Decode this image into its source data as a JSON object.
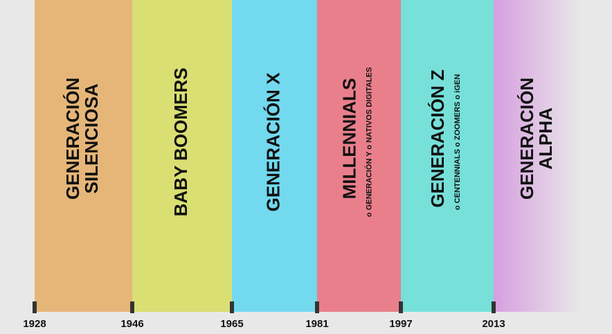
{
  "generations": [
    {
      "lines": [
        "GENERACIÓN",
        "SILENCIOSA"
      ]
    },
    {
      "lines": [
        "BABY BOOMERS"
      ]
    },
    {
      "lines": [
        "GENERACIÓN X"
      ]
    },
    {
      "lines": [
        "MILLENNIALS"
      ],
      "subtitle": "o GENERACIÓN Y  o  NATIVOS DIGITALES"
    },
    {
      "lines": [
        "GENERACIÓN Z"
      ],
      "subtitle": "o CENTENNIALS  o  ZOOMERS  o  iGEN"
    },
    {
      "lines": [
        "GENERACIÓN",
        "ALPHA"
      ]
    }
  ],
  "years": [
    "1928",
    "1946",
    "1965",
    "1981",
    "1997",
    "2013"
  ]
}
